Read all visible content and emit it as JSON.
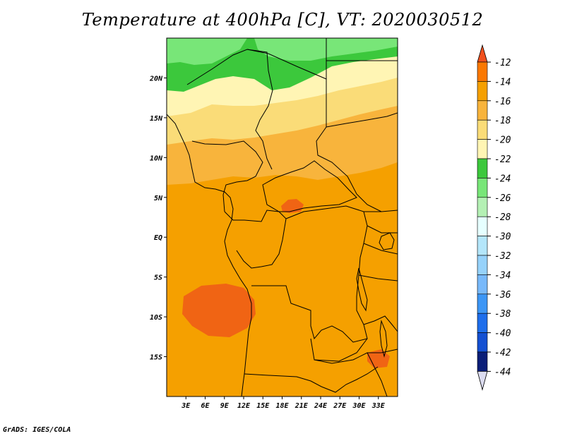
{
  "title": "Temperature at 400hPa [C], VT: 2020030512",
  "credit": "GrADS: IGES/COLA",
  "map": {
    "lon_range": [
      0,
      36
    ],
    "lat_range": [
      -20,
      25
    ],
    "x_ticks": [
      "3E",
      "6E",
      "9E",
      "12E",
      "15E",
      "18E",
      "21E",
      "24E",
      "27E",
      "30E",
      "33E"
    ],
    "x_tick_values": [
      3,
      6,
      9,
      12,
      15,
      18,
      21,
      24,
      27,
      30,
      33
    ],
    "y_ticks": [
      "20N",
      "15N",
      "10N",
      "5N",
      "EQ",
      "5S",
      "10S",
      "15S"
    ],
    "y_tick_values": [
      20,
      15,
      10,
      5,
      0,
      -5,
      -10,
      -15
    ]
  },
  "colorbar": {
    "levels": [
      "-12",
      "-14",
      "-16",
      "-18",
      "-20",
      "-22",
      "-24",
      "-26",
      "-28",
      "-30",
      "-32",
      "-34",
      "-36",
      "-38",
      "-40",
      "-42",
      "-44"
    ],
    "colors": [
      "#f0501e",
      "#fa7800",
      "#f5a000",
      "#f8b43c",
      "#fadc78",
      "#fff5b4",
      "#3cc83c",
      "#78e678",
      "#b4f0b4",
      "#e6ffff",
      "#b4e6fa",
      "#96d2fa",
      "#78b9fa",
      "#3c96f5",
      "#1e6eeb",
      "#1450d2",
      "#0a1e78",
      "#dcdcf0"
    ],
    "top_color": "#f0501e",
    "bottom_color": "#dcdcf0"
  },
  "fills": {
    "background": "#f5a000",
    "warm_patch": "#f06414",
    "band_f8b43c": "#f8b43c",
    "band_fadc78": "#fadc78",
    "band_fff5b4": "#fff5b4",
    "band_green_dark": "#3cc83c",
    "band_green_light": "#78e678"
  }
}
